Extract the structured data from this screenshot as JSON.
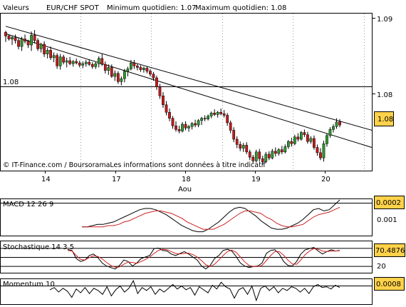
{
  "header": {
    "valeurs": "Valeurs",
    "symbol": "EUR/CHF SPOT",
    "min_label": "Minimum quotidien: 1.07",
    "max_label": "Maximum quotidien: 1.08"
  },
  "footer_text": "© IT-Finance.com / BoursoramaLes informations sont données à titre indicatif",
  "colors": {
    "up": "#2e9a2e",
    "down": "#c81a1a",
    "line": "#000000",
    "signal": "#cc2222",
    "highlight": "#ffd24a"
  },
  "chart_data": [
    {
      "type": "candlestick",
      "categories": [
        "14",
        "17",
        "18",
        "19",
        "20"
      ],
      "xlabel": "Aou",
      "ylim": [
        1.071,
        1.092
      ],
      "yticks": [
        "1.09",
        "1.08"
      ],
      "reference_line": {
        "label": "1.08",
        "value": 1.0795
      },
      "last_value": "1.08",
      "trendlines": [
        {
          "from": [
            0,
            1.0903
          ],
          "to": [
            115,
            1.0764
          ]
        },
        {
          "from": [
            0,
            1.0893
          ],
          "to": [
            115,
            1.0741
          ]
        }
      ],
      "ohlc": [
        [
          1.0895,
          1.0897,
          1.0882,
          1.089
        ],
        [
          1.089,
          1.0892,
          1.0884,
          1.0886
        ],
        [
          1.0886,
          1.089,
          1.0878,
          1.0888
        ],
        [
          1.0888,
          1.0892,
          1.088,
          1.0884
        ],
        [
          1.0884,
          1.0888,
          1.0872,
          1.0876
        ],
        [
          1.0876,
          1.0889,
          1.087,
          1.0886
        ],
        [
          1.0886,
          1.0892,
          1.088,
          1.0883
        ],
        [
          1.0883,
          1.0885,
          1.0874,
          1.0878
        ],
        [
          1.0878,
          1.0896,
          1.087,
          1.0891
        ],
        [
          1.0891,
          1.0898,
          1.088,
          1.0884
        ],
        [
          1.0884,
          1.0887,
          1.087,
          1.0873
        ],
        [
          1.0873,
          1.0881,
          1.0868,
          1.0879
        ],
        [
          1.0879,
          1.0883,
          1.0862,
          1.0866
        ],
        [
          1.0866,
          1.0874,
          1.086,
          1.0871
        ],
        [
          1.0871,
          1.0876,
          1.0858,
          1.0861
        ],
        [
          1.0861,
          1.0868,
          1.0855,
          1.0864
        ],
        [
          1.0864,
          1.0867,
          1.0846,
          1.085
        ],
        [
          1.085,
          1.0866,
          1.0845,
          1.0862
        ],
        [
          1.0862,
          1.0865,
          1.0852,
          1.0855
        ],
        [
          1.0855,
          1.0861,
          1.0848,
          1.0857
        ],
        [
          1.0857,
          1.0862,
          1.0851,
          1.0853
        ],
        [
          1.0853,
          1.0858,
          1.0849,
          1.0856
        ],
        [
          1.0856,
          1.086,
          1.0852,
          1.0854
        ],
        [
          1.0854,
          1.0857,
          1.0848,
          1.0851
        ],
        [
          1.0851,
          1.0856,
          1.0847,
          1.0853
        ],
        [
          1.0853,
          1.0858,
          1.0849,
          1.0855
        ],
        [
          1.0855,
          1.0859,
          1.085,
          1.0852
        ],
        [
          1.0852,
          1.0855,
          1.0846,
          1.0849
        ],
        [
          1.0849,
          1.0856,
          1.0846,
          1.0853
        ],
        [
          1.0853,
          1.0863,
          1.0848,
          1.086
        ],
        [
          1.086,
          1.0866,
          1.085,
          1.0852
        ],
        [
          1.0852,
          1.0856,
          1.084,
          1.0844
        ],
        [
          1.0844,
          1.0852,
          1.0838,
          1.0848
        ],
        [
          1.0848,
          1.0852,
          1.0834,
          1.0836
        ],
        [
          1.0836,
          1.0844,
          1.083,
          1.084
        ],
        [
          1.084,
          1.0843,
          1.0826,
          1.0829
        ],
        [
          1.0829,
          1.0836,
          1.0824,
          1.0833
        ],
        [
          1.0833,
          1.0846,
          1.0828,
          1.0843
        ],
        [
          1.0843,
          1.0849,
          1.0836,
          1.0846
        ],
        [
          1.0846,
          1.0858,
          1.0844,
          1.0854
        ],
        [
          1.0854,
          1.0858,
          1.0846,
          1.085
        ],
        [
          1.085,
          1.0853,
          1.0844,
          1.0848
        ],
        [
          1.0848,
          1.0851,
          1.0842,
          1.0845
        ],
        [
          1.0845,
          1.0849,
          1.0841,
          1.0847
        ],
        [
          1.0847,
          1.0849,
          1.084,
          1.0843
        ],
        [
          1.0843,
          1.0846,
          1.0836,
          1.0839
        ],
        [
          1.0839,
          1.0842,
          1.083,
          1.0834
        ],
        [
          1.0834,
          1.0837,
          1.0818,
          1.0822
        ],
        [
          1.0822,
          1.0826,
          1.0806,
          1.081
        ],
        [
          1.081,
          1.0815,
          1.0794,
          1.0798
        ],
        [
          1.0798,
          1.0803,
          1.0784,
          1.0788
        ],
        [
          1.0788,
          1.0793,
          1.0776,
          1.078
        ],
        [
          1.078,
          1.0783,
          1.0766,
          1.077
        ],
        [
          1.077,
          1.0776,
          1.0762,
          1.0765
        ],
        [
          1.0765,
          1.077,
          1.076,
          1.0763
        ],
        [
          1.0763,
          1.0775,
          1.0761,
          1.0772
        ],
        [
          1.0772,
          1.0776,
          1.0764,
          1.0767
        ],
        [
          1.0767,
          1.0771,
          1.0762,
          1.0769
        ],
        [
          1.0769,
          1.0775,
          1.0765,
          1.0773
        ],
        [
          1.0773,
          1.0778,
          1.0768,
          1.0771
        ],
        [
          1.0771,
          1.0779,
          1.0768,
          1.0777
        ],
        [
          1.0777,
          1.0782,
          1.0771,
          1.078
        ],
        [
          1.078,
          1.0784,
          1.0776,
          1.0779
        ],
        [
          1.0779,
          1.0785,
          1.0777,
          1.0783
        ],
        [
          1.0783,
          1.0789,
          1.078,
          1.0787
        ],
        [
          1.0787,
          1.0792,
          1.0783,
          1.0785
        ],
        [
          1.0785,
          1.079,
          1.0781,
          1.0788
        ],
        [
          1.0788,
          1.0793,
          1.0784,
          1.0786
        ],
        [
          1.0786,
          1.0791,
          1.0781,
          1.0784
        ],
        [
          1.0784,
          1.0787,
          1.077,
          1.0774
        ],
        [
          1.0774,
          1.0777,
          1.076,
          1.0764
        ],
        [
          1.0764,
          1.0768,
          1.0748,
          1.0752
        ],
        [
          1.0752,
          1.0756,
          1.074,
          1.0745
        ],
        [
          1.0745,
          1.0749,
          1.0736,
          1.074
        ],
        [
          1.074,
          1.0747,
          1.0735,
          1.0744
        ],
        [
          1.0744,
          1.0748,
          1.0732,
          1.0735
        ],
        [
          1.0735,
          1.0738,
          1.0724,
          1.0728
        ],
        [
          1.0728,
          1.0731,
          1.072,
          1.0723
        ],
        [
          1.0723,
          1.0738,
          1.0721,
          1.0735
        ],
        [
          1.0735,
          1.0739,
          1.0722,
          1.0726
        ],
        [
          1.0726,
          1.073,
          1.0718,
          1.0722
        ],
        [
          1.0722,
          1.0735,
          1.072,
          1.0732
        ],
        [
          1.0732,
          1.0736,
          1.0724,
          1.0727
        ],
        [
          1.0727,
          1.0739,
          1.0725,
          1.0736
        ],
        [
          1.0736,
          1.0741,
          1.0729,
          1.0733
        ],
        [
          1.0733,
          1.074,
          1.073,
          1.0738
        ],
        [
          1.0738,
          1.0743,
          1.0732,
          1.0735
        ],
        [
          1.0735,
          1.0745,
          1.0733,
          1.0742
        ],
        [
          1.0742,
          1.0751,
          1.0739,
          1.0749
        ],
        [
          1.0749,
          1.0754,
          1.0742,
          1.0746
        ],
        [
          1.0746,
          1.0758,
          1.0744,
          1.0755
        ],
        [
          1.0755,
          1.076,
          1.0749,
          1.0752
        ],
        [
          1.0752,
          1.0763,
          1.075,
          1.0761
        ],
        [
          1.0761,
          1.0765,
          1.0755,
          1.0758
        ],
        [
          1.0758,
          1.0762,
          1.0746,
          1.0749
        ],
        [
          1.0749,
          1.0756,
          1.0746,
          1.0753
        ],
        [
          1.0753,
          1.0757,
          1.0738,
          1.0741
        ],
        [
          1.0741,
          1.0745,
          1.073,
          1.0734
        ],
        [
          1.0734,
          1.074,
          1.0724,
          1.0727
        ],
        [
          1.0727,
          1.075,
          1.0722,
          1.0746
        ],
        [
          1.0746,
          1.076,
          1.0742,
          1.0757
        ],
        [
          1.0757,
          1.0768,
          1.0754,
          1.0765
        ],
        [
          1.0765,
          1.0772,
          1.0761,
          1.0769
        ],
        [
          1.0769,
          1.078,
          1.0766,
          1.0775
        ],
        [
          1.0775,
          1.0779,
          1.0768,
          1.0771
        ]
      ]
    },
    {
      "type": "line",
      "title": "MACD 12 26 9",
      "ytick": "0.001",
      "last_value": "0.0002",
      "series": [
        {
          "values": [
            -0.0002,
            -0.0002,
            -0.0001,
            0.0,
            0.0,
            0.0001,
            0.0002,
            0.0004,
            0.0006,
            0.0008,
            0.001,
            0.0012,
            0.0013,
            0.0013,
            0.0012,
            0.001,
            0.0008,
            0.0005,
            0.0002,
            -0.0001,
            -0.0003,
            -0.0005,
            -0.0006,
            -0.0006,
            -0.0004,
            -0.0001,
            0.0002,
            0.0006,
            0.001,
            0.0013,
            0.0014,
            0.0013,
            0.001,
            0.0007,
            0.0003,
            0.0,
            -0.0003,
            -0.0004,
            -0.0004,
            -0.0003,
            -0.0001,
            0.0001,
            0.0004,
            0.0008,
            0.0012,
            0.0013,
            0.0011,
            0.0012,
            0.0016,
            0.002
          ]
        },
        {
          "values": [
            -0.0002,
            -0.0002,
            -0.0002,
            -0.0002,
            -0.0002,
            -0.0001,
            -0.0001,
            0.0,
            0.0002,
            0.0003,
            0.0005,
            0.0007,
            0.0009,
            0.001,
            0.0011,
            0.0011,
            0.001,
            0.0009,
            0.0007,
            0.0005,
            0.0002,
            0.0,
            -0.0002,
            -0.0004,
            -0.0004,
            -0.0004,
            -0.0002,
            0.0,
            0.0003,
            0.0006,
            0.0009,
            0.0011,
            0.0011,
            0.001,
            0.0009,
            0.0006,
            0.0004,
            0.0001,
            -0.0001,
            -0.0002,
            -0.0002,
            -0.0001,
            0.0,
            0.0003,
            0.0006,
            0.0008,
            0.0009,
            0.001,
            0.0012,
            0.0014
          ]
        }
      ]
    },
    {
      "type": "line",
      "title": "Stochastique 14 3 5",
      "hlines": [
        80,
        50,
        20
      ],
      "ytick": "20",
      "last_value": "70.4876",
      "series": [
        {
          "values": [
            75,
            72,
            45,
            35,
            40,
            55,
            60,
            48,
            30,
            20,
            15,
            10,
            22,
            40,
            35,
            20,
            30,
            45,
            50,
            55,
            78,
            80,
            72,
            70,
            60,
            55,
            62,
            68,
            60,
            50,
            40,
            20,
            10,
            22,
            45,
            55,
            72,
            76,
            70,
            52,
            30,
            20,
            15,
            18,
            20,
            30,
            62,
            72,
            74,
            60,
            35,
            22,
            20,
            35,
            60,
            74,
            78,
            82,
            70,
            60,
            68,
            74,
            70,
            72
          ]
        },
        {
          "values": [
            72,
            70,
            55,
            42,
            40,
            48,
            54,
            52,
            44,
            32,
            22,
            16,
            17,
            26,
            33,
            32,
            29,
            35,
            42,
            50,
            62,
            72,
            76,
            74,
            68,
            62,
            60,
            62,
            63,
            58,
            50,
            38,
            24,
            18,
            26,
            40,
            55,
            68,
            73,
            66,
            50,
            34,
            22,
            18,
            18,
            22,
            38,
            55,
            68,
            68,
            56,
            40,
            27,
            26,
            40,
            58,
            70,
            78,
            76,
            70,
            68,
            70,
            70,
            71
          ]
        }
      ]
    },
    {
      "type": "line",
      "title": "Momentum 10",
      "hline": 0,
      "last_value": "0.0008",
      "series": [
        {
          "values": [
            0.0002,
            0.0005,
            -0.0001,
            0.0004,
            0.0,
            -0.0008,
            0.0003,
            -0.0002,
            0.0005,
            -0.0003,
            0.0004,
            0.0001,
            -0.0004,
            0.0006,
            -0.0006,
            0.0002,
            0.0007,
            -0.0001,
            0.0004,
            0.0014,
            -0.0003,
            0.0005,
            0.0001,
            0.0006,
            -0.0004,
            0.0003,
            -0.0001,
            0.0004,
            0.0009,
            0.0003,
            0.0007,
            0.0002,
            0.0005,
            -0.0005,
            0.0006,
            0.0002,
            -0.0002,
            0.0008,
            0.0003,
            0.0012,
            0.0006,
            0.0003,
            -0.0009,
            0.0002,
            0.0005,
            -0.0004,
            0.0007,
            -0.0012,
            0.0004,
            0.0007,
            0.0001,
            0.0006,
            -0.0002,
            0.0004,
            0.0001,
            0.0006,
            0.0004,
            -0.0001,
            0.0004,
            -0.0003,
            0.0006,
            0.0009,
            0.0005,
            0.0006,
            0.0003,
            0.0008,
            0.0005
          ]
        }
      ]
    }
  ]
}
